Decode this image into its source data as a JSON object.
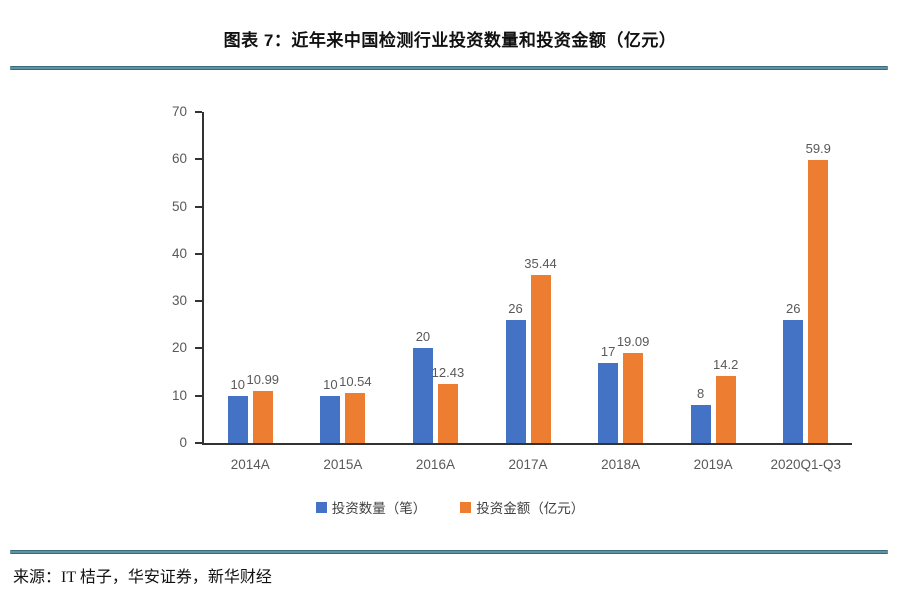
{
  "page": {
    "title": "图表 7：近年来中国检测行业投资数量和投资金额（亿元）",
    "source": "来源：IT 桔子，华安证券，新华财经"
  },
  "colors": {
    "series_count": "#4472C4",
    "series_amount": "#ED7D31",
    "rule": "#2E6374",
    "axis": "#333333",
    "tick_label": "#595959"
  },
  "chart_data": {
    "type": "bar",
    "title": "图表 7：近年来中国检测行业投资数量和投资金额（亿元）",
    "categories": [
      "2014A",
      "2015A",
      "2016A",
      "2017A",
      "2018A",
      "2019A",
      "2020Q1-Q3"
    ],
    "series": [
      {
        "name": "投资数量（笔）",
        "color": "#4472C4",
        "values": [
          10,
          10,
          20,
          26,
          17,
          8,
          26
        ]
      },
      {
        "name": "投资金额（亿元）",
        "color": "#ED7D31",
        "values": [
          10.99,
          10.54,
          12.43,
          35.44,
          19.09,
          14.2,
          59.9
        ]
      }
    ],
    "xlabel": "",
    "ylabel": "",
    "ylim": [
      0,
      70
    ],
    "yticks": [
      0,
      10,
      20,
      30,
      40,
      50,
      60,
      70
    ],
    "grid": false,
    "legend_position": "bottom",
    "data_labels": true
  }
}
